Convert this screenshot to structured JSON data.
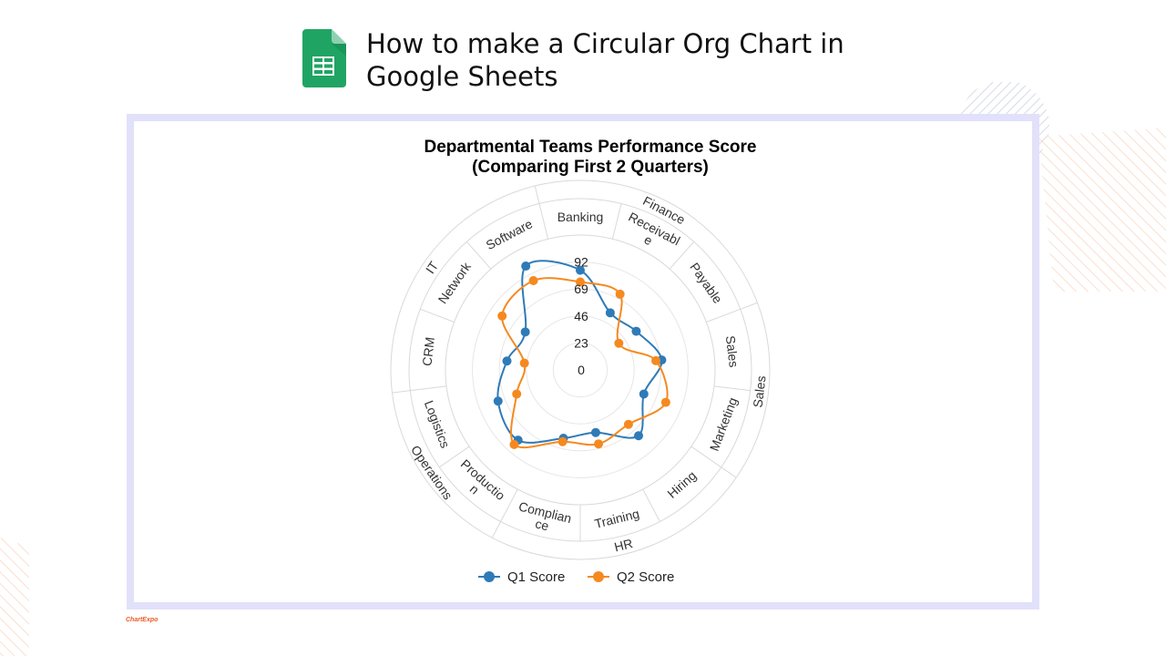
{
  "page": {
    "title_line1": "How to make a Circular Org Chart in",
    "title_line2": "Google Sheets",
    "brand": "ChartExpo"
  },
  "colors": {
    "q1": "#2e7bb8",
    "q2": "#f5891f",
    "frame": "#e1e1fb",
    "grid": "#d9d9d9",
    "sheets_green": "#20a464"
  },
  "chart_data": {
    "type": "radar",
    "title_line1": "Departmental Teams Performance Score",
    "title_line2": "(Comparing First 2 Quarters)",
    "radial_ticks": [
      "0",
      "23",
      "46",
      "69",
      "92"
    ],
    "rmax": 115,
    "categories": [
      "Banking",
      "Receivable",
      "Payable",
      "Sales",
      "Marketing",
      "Hiring",
      "Training",
      "Compliance",
      "Production",
      "Logistics",
      "CRM",
      "Network",
      "Software"
    ],
    "category_labels": [
      [
        "Banking"
      ],
      [
        "Receivabl",
        "e"
      ],
      [
        "Payable"
      ],
      [
        "Sales"
      ],
      [
        "Marketing"
      ],
      [
        "Hiring"
      ],
      [
        "Training"
      ],
      [
        "Complian",
        "ce"
      ],
      [
        "Productio",
        "n"
      ],
      [
        "Logistics"
      ],
      [
        "CRM"
      ],
      [
        "Network"
      ],
      [
        "Software"
      ]
    ],
    "groups": [
      {
        "name": "Finance",
        "categories": [
          "Banking",
          "Receivable",
          "Payable"
        ]
      },
      {
        "name": "Sales",
        "categories": [
          "Sales",
          "Marketing"
        ]
      },
      {
        "name": "HR",
        "categories": [
          "Hiring",
          "Training",
          "Compliance"
        ]
      },
      {
        "name": "Operations",
        "categories": [
          "Production",
          "Logistics"
        ]
      },
      {
        "name": "IT",
        "categories": [
          "CRM",
          "Network",
          "Software"
        ]
      }
    ],
    "series": [
      {
        "name": "Q1 Score",
        "values": [
          85,
          55,
          58,
          70,
          58,
          75,
          55,
          60,
          80,
          75,
          63,
          57,
          100
        ]
      },
      {
        "name": "Q2 Score",
        "values": [
          75,
          73,
          40,
          65,
          78,
          62,
          65,
          63,
          85,
          58,
          48,
          81,
          86
        ]
      }
    ],
    "legend_position": "bottom"
  }
}
